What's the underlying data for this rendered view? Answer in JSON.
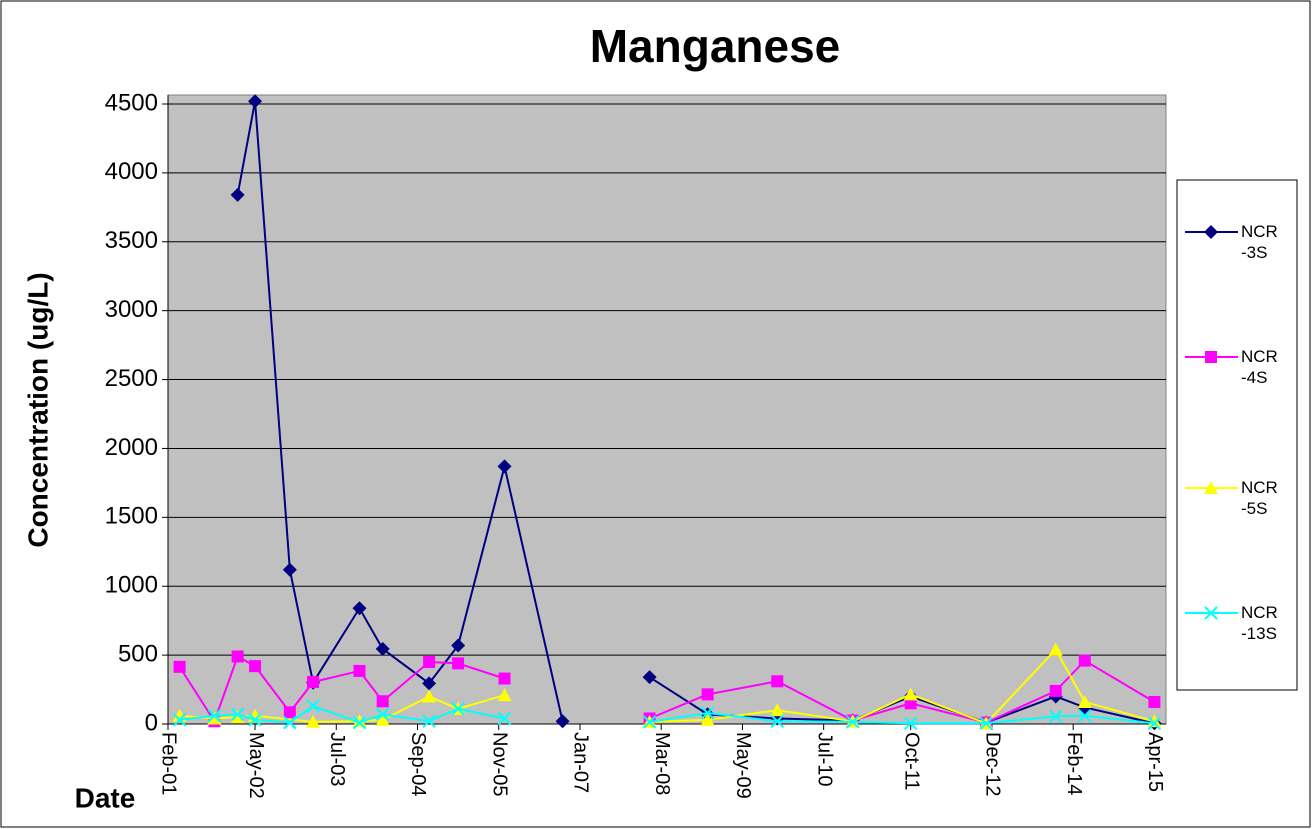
{
  "chart_data": {
    "type": "line",
    "title": "Manganese",
    "y_label": "Concentration (ug/L)",
    "x_label": "Date",
    "xlim": [
      "Feb-01",
      "Jun-15"
    ],
    "xticks": [
      "Feb-01",
      "May-02",
      "Jul-03",
      "Sep-04",
      "Nov-05",
      "Jan-07",
      "Mar-08",
      "May-09",
      "Jul-10",
      "Oct-11",
      "Dec-12",
      "Feb-14",
      "Apr-15"
    ],
    "ylim": [
      0,
      4500
    ],
    "yticks": [
      0,
      500,
      1000,
      1500,
      2000,
      2500,
      3000,
      3500,
      4000,
      4500
    ],
    "grid": true,
    "legend": "right",
    "series": [
      {
        "name": "NCR-3S",
        "color": "#000080",
        "marker": "diamond",
        "x": [
          "Feb-02",
          "May-02",
          "Nov-02",
          "Mar-03",
          "Nov-03",
          "Mar-04",
          "Nov-04",
          "Apr-05",
          "Dec-05",
          "Oct-06",
          "Apr-07",
          "Jan-08",
          "Nov-08",
          "Nov-09",
          "Dec-10",
          "Oct-11",
          "Nov-12",
          "Nov-13",
          "Apr-14",
          "Apr-15"
        ],
        "values": [
          3840,
          4520,
          1120,
          300,
          840,
          545,
          295,
          570,
          1870,
          20,
          null,
          340,
          70,
          40,
          25,
          200,
          10,
          200,
          120,
          5
        ]
      },
      {
        "name": "NCR-4S",
        "color": "#ff00ff",
        "marker": "square",
        "x": [
          "Apr-01",
          "Oct-01",
          "Feb-02",
          "May-02",
          "Nov-02",
          "Mar-03",
          "Nov-03",
          "Mar-04",
          "Nov-04",
          "Apr-05",
          "Dec-05",
          "Apr-07",
          "Jan-08",
          "Nov-08",
          "Nov-09",
          "Dec-10",
          "Oct-11",
          "Nov-12",
          "Nov-13",
          "Apr-14",
          "Apr-15"
        ],
        "values": [
          415,
          20,
          490,
          420,
          85,
          305,
          385,
          165,
          450,
          440,
          330,
          null,
          40,
          215,
          310,
          25,
          150,
          10,
          240,
          460,
          160
        ]
      },
      {
        "name": "NCR-5S",
        "color": "#ffff00",
        "marker": "triangle",
        "x": [
          "Apr-01",
          "Oct-01",
          "Feb-02",
          "May-02",
          "Mar-03",
          "Nov-03",
          "Mar-04",
          "Nov-04",
          "Apr-05",
          "Dec-05",
          "Apr-07",
          "Jan-08",
          "Nov-08",
          "Nov-09",
          "Dec-10",
          "Oct-11",
          "Nov-12",
          "Nov-13",
          "Apr-14",
          "Apr-15"
        ],
        "values": [
          60,
          40,
          50,
          60,
          15,
          20,
          30,
          200,
          110,
          210,
          null,
          15,
          30,
          100,
          20,
          215,
          5,
          540,
          160,
          20
        ]
      },
      {
        "name": "NCR-13S",
        "color": "#00ffff",
        "marker": "x",
        "x": [
          "Apr-01",
          "Oct-01",
          "Feb-02",
          "May-02",
          "Nov-02",
          "Mar-03",
          "Nov-03",
          "Mar-04",
          "Nov-04",
          "Apr-05",
          "Dec-05",
          "Apr-07",
          "Jan-08",
          "Nov-08",
          "Nov-09",
          "Dec-10",
          "Oct-11",
          "Nov-12",
          "Nov-13",
          "Apr-14",
          "Apr-15"
        ],
        "values": [
          30,
          60,
          70,
          30,
          10,
          130,
          10,
          70,
          20,
          110,
          40,
          null,
          15,
          80,
          20,
          15,
          5,
          5,
          55,
          60,
          5
        ]
      }
    ]
  }
}
